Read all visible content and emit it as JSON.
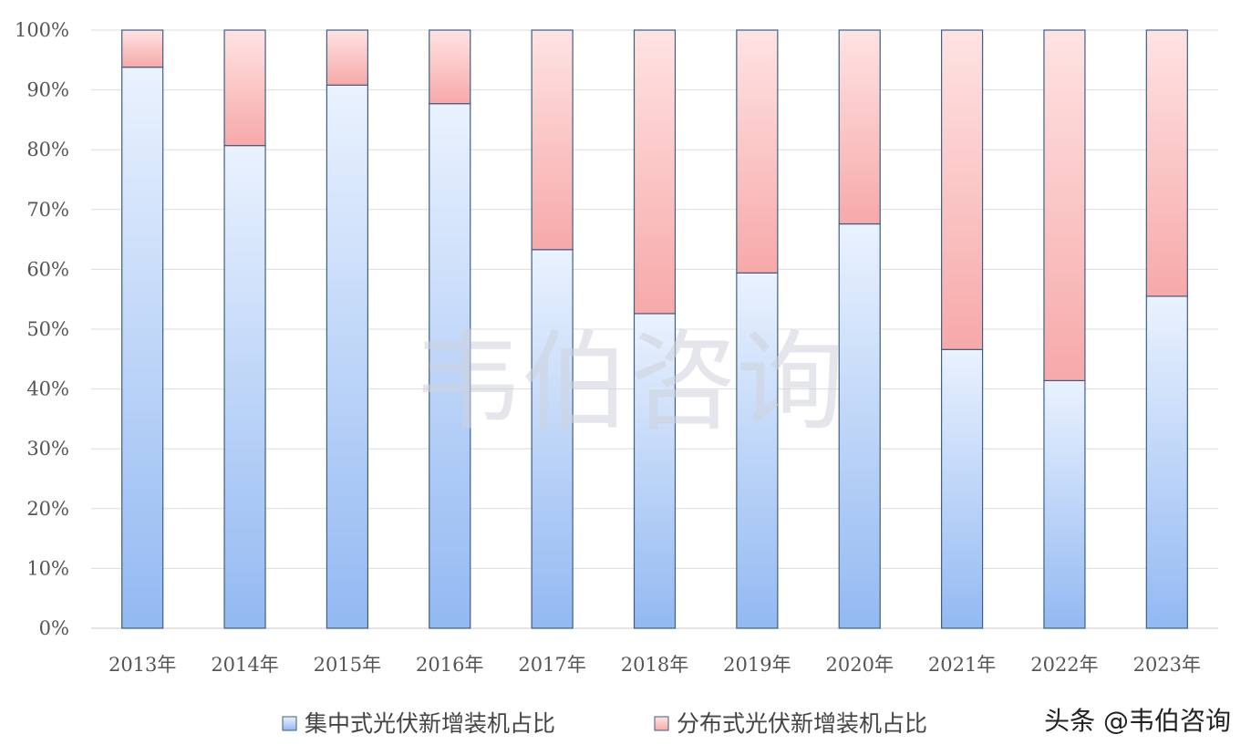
{
  "chart_data": {
    "type": "bar",
    "stacked": true,
    "categories": [
      "2013年",
      "2014年",
      "2015年",
      "2016年",
      "2017年",
      "2018年",
      "2019年",
      "2020年",
      "2021年",
      "2022年",
      "2023年"
    ],
    "series": [
      {
        "name": "集中式光伏新增装机占比",
        "values": [
          93.8,
          80.7,
          90.8,
          87.7,
          63.3,
          52.6,
          59.4,
          67.6,
          46.6,
          41.4,
          55.5
        ],
        "color_top": "#eaf2fe",
        "color_bottom": "#93b9f2"
      },
      {
        "name": "分布式光伏新增装机占比",
        "values": [
          6.2,
          19.3,
          9.2,
          12.3,
          36.7,
          47.4,
          40.6,
          32.4,
          53.4,
          58.6,
          44.5
        ],
        "color_top": "#ffe3e3",
        "color_bottom": "#f7a9a9"
      }
    ],
    "ylim": [
      0,
      100
    ],
    "yticks": [
      "0%",
      "10%",
      "20%",
      "30%",
      "40%",
      "50%",
      "60%",
      "70%",
      "80%",
      "90%",
      "100%"
    ],
    "grid": true,
    "legend_position": "bottom",
    "bar_outline": "#3d5f86"
  },
  "watermark": "韦伯咨询",
  "corner_watermark": "头条 @韦伯咨询"
}
